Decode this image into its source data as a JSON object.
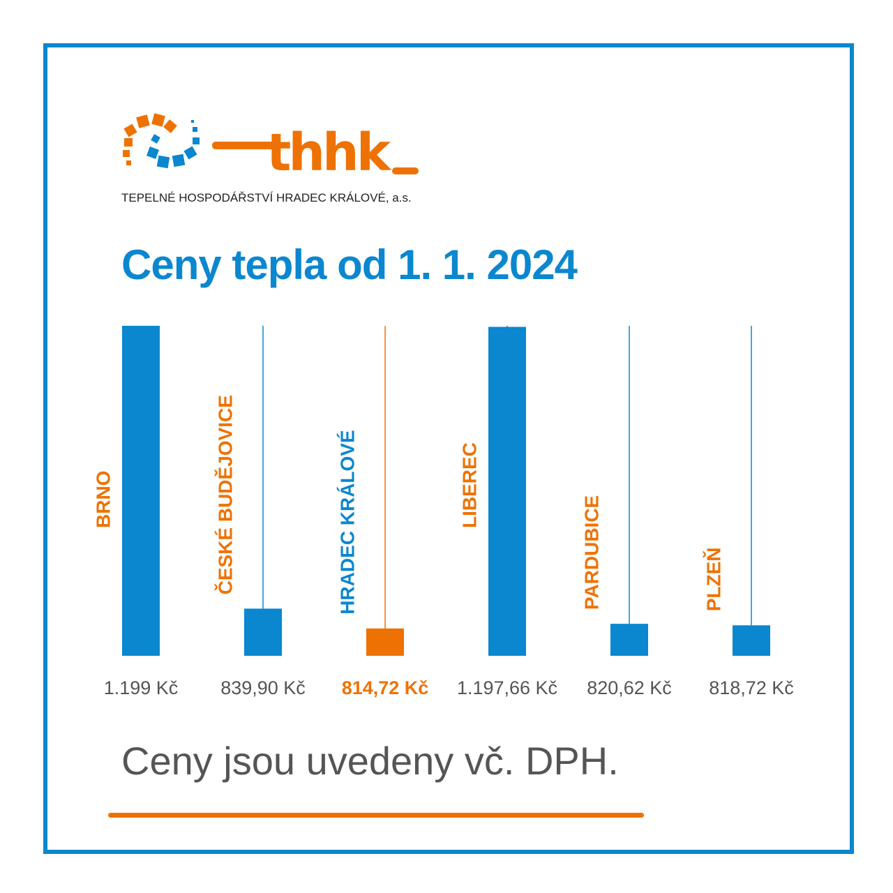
{
  "brand": {
    "logo_text": "thhk",
    "company_name": "TEPELNÉ HOSPODÁŘSTVÍ HRADEC KRÁLOVÉ, a.s."
  },
  "headline": "Ceny tepla od 1. 1. 2024",
  "footnote": "Ceny jsou uvedeny vč. DPH.",
  "colors": {
    "blue": "#0a87cf",
    "orange": "#ee7203",
    "grey_text": "#555555"
  },
  "chart_data": {
    "type": "bar",
    "categories": [
      "BRNO",
      "ČESKÉ BUDĚJOVICE",
      "HRADEC KRÁLOVÉ",
      "LIBEREC",
      "PARDUBICE",
      "PLZEŇ"
    ],
    "values": [
      1199,
      839.9,
      814.72,
      1197.66,
      820.62,
      818.72
    ],
    "value_labels": [
      "1.199 Kč",
      "839,90 Kč",
      "814,72 Kč",
      "1.197,66 Kč",
      "820,62 Kč",
      "818,72 Kč"
    ],
    "highlight": "HRADEC KRÁLOVÉ",
    "ylim": [
      780,
      1199
    ],
    "title": "",
    "xlabel": "",
    "ylabel": ""
  }
}
